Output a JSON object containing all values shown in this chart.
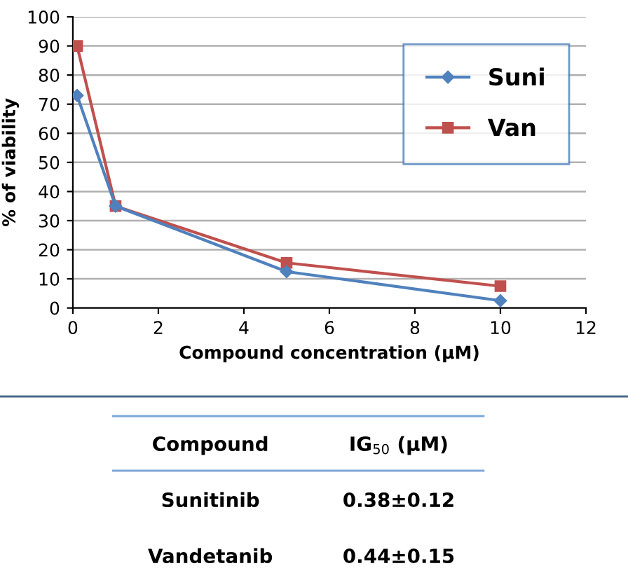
{
  "chart_data": {
    "type": "line",
    "xlabel": "Compound concentration (µM)",
    "ylabel": "% of viability",
    "series": [
      {
        "name": "Suni",
        "color": "#4f81bd",
        "marker": "diamond",
        "x": [
          0.1,
          1,
          5,
          10
        ],
        "values": [
          73,
          35,
          12.5,
          2.5
        ]
      },
      {
        "name": "Van",
        "color": "#c0504d",
        "marker": "square",
        "x": [
          0.1,
          1,
          5,
          10
        ],
        "values": [
          90,
          35,
          15.5,
          7.5
        ]
      }
    ],
    "xlim": [
      0,
      12
    ],
    "xticks": [
      0,
      2,
      4,
      6,
      8,
      10,
      12
    ],
    "ylim": [
      0,
      100
    ],
    "yticks": [
      0,
      10,
      20,
      30,
      40,
      50,
      60,
      70,
      80,
      90,
      100
    ],
    "grid": "y",
    "legend": "right",
    "annotations": [
      "Compound",
      "IG$_{50}$ (µM)",
      "Sunitinib",
      "0.38±0.12",
      "Vandetanib",
      "0.44±0.15"
    ]
  }
}
